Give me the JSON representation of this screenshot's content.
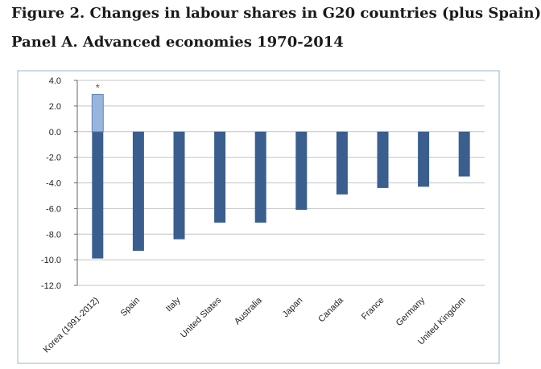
{
  "header": {
    "figure_title": "Figure 2. Changes in labour shares in G20 countries (plus Spain)",
    "panel_title": "Panel A. Advanced economies 1970-2014"
  },
  "chart_data": {
    "type": "bar",
    "categories": [
      "Korea (1991-2012)",
      "Spain",
      "Italy",
      "United States",
      "Australia",
      "Japan",
      "Canada",
      "France",
      "Germany",
      "United Kingdom"
    ],
    "series": [
      {
        "values": [
          -9.9,
          -9.3,
          -8.4,
          -7.1,
          -7.1,
          -6.1,
          -4.9,
          -4.4,
          -4.3,
          -3.5
        ]
      }
    ],
    "highlight": {
      "category": "Korea (1991-2012)",
      "value": 2.9,
      "marker": "*"
    },
    "ylim": [
      -12.0,
      4.0
    ],
    "yticks": [
      "4.0",
      "2.0",
      "0.0",
      "-2.0",
      "-4.0",
      "-6.0",
      "-8.0",
      "-10.0",
      "-12.0"
    ],
    "grid": true,
    "colors": {
      "bar": "#3a5f8f",
      "highlight_bar": "#98b6dd",
      "highlight_edge": "#5e86bd",
      "marker": "#b03030",
      "grid": "#c4c4c4",
      "frame": "#9bb3cc",
      "text": "#222222"
    }
  }
}
